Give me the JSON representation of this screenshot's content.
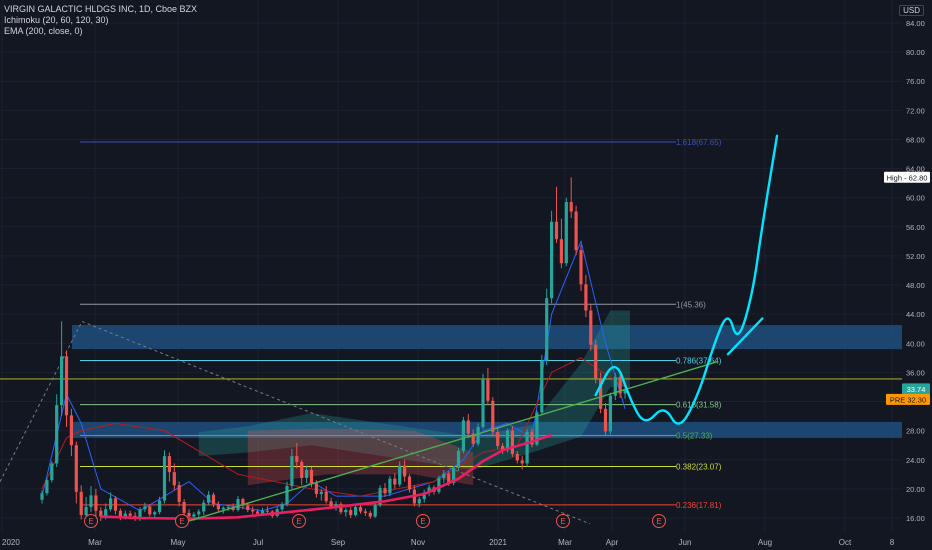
{
  "legend": {
    "symbol": "VIRGIN GALACTIC HLDGS INC, 1D, Cboe BZX",
    "ichimoku": "Ichimoku (20, 60, 120, 30)",
    "ema": "EMA (200, close, 0)"
  },
  "currency": "USD",
  "colors": {
    "background": "#131722",
    "up": "#26a69a",
    "down": "#ef5350",
    "ema": "#e91e63",
    "drawing": "#00e5ff",
    "zone": "#1e4f7e",
    "trendline": "#4caf50"
  },
  "chart_data": {
    "type": "candlestick",
    "ylim": [
      15,
      87
    ],
    "y_ticks": [
      16,
      20,
      24,
      28,
      32,
      36,
      40,
      44,
      48,
      52,
      56,
      60,
      64,
      68,
      72,
      76,
      80,
      84
    ],
    "y_tick_labels": [
      "16.00",
      "20.00",
      "24.00",
      "28.00",
      "32.00",
      "36.00",
      "40.00",
      "44.00",
      "48.00",
      "52.00",
      "56.00",
      "60.00",
      "64.00",
      "68.00",
      "72.00",
      "76.00",
      "80.00",
      "84.00"
    ],
    "x_ticks": [
      "2020",
      "Mar",
      "May",
      "Jul",
      "Sep",
      "Nov",
      "2021",
      "Mar",
      "Apr",
      "Jun",
      "Aug",
      "Oct",
      "8"
    ],
    "fib_levels": [
      {
        "label": "1.618(67.65)",
        "value": 67.65,
        "color": "#3f51b5"
      },
      {
        "label": "1(45.36)",
        "value": 45.36,
        "color": "#9598a1"
      },
      {
        "label": "0.786(37.64)",
        "value": 37.64,
        "color": "#4dd0e1"
      },
      {
        "label": "0.618(31.58)",
        "value": 31.58,
        "color": "#81c784"
      },
      {
        "label": "0.5(27.33)",
        "value": 27.33,
        "color": "#4caf50"
      },
      {
        "label": "0.382(23.07)",
        "value": 23.07,
        "color": "#cddc39"
      },
      {
        "label": "0.236(17.81)",
        "value": 17.81,
        "color": "#f44336"
      }
    ],
    "zones": [
      {
        "top": 42.5,
        "bottom": 39.2
      },
      {
        "top": 29.2,
        "bottom": 27.0
      }
    ],
    "price_labels": [
      {
        "label": "High - 62.80",
        "value": 62.8,
        "color": "#ffffff",
        "text_color": "#131722"
      },
      {
        "label": "33.74",
        "value": 33.74,
        "color": "#26a69a",
        "text_color": "#ffffff"
      },
      {
        "label": "PRE 32.30",
        "value": 32.3,
        "color": "#ff9800",
        "text_color": "#131722"
      }
    ],
    "earnings_markers": [
      "E",
      "E",
      "E",
      "E",
      "E",
      "E"
    ],
    "trendline": {
      "from": [
        30,
        15.6
      ],
      "to": [
        138,
        37.5
      ]
    },
    "ema_series": [
      [
        12,
        16.2
      ],
      [
        20,
        16.0
      ],
      [
        30,
        15.9
      ],
      [
        40,
        16.1
      ],
      [
        50,
        16.8
      ],
      [
        60,
        17.5
      ],
      [
        70,
        18.3
      ],
      [
        78,
        19.3
      ],
      [
        85,
        21.4
      ],
      [
        90,
        23.8
      ],
      [
        94,
        25.3
      ],
      [
        100,
        26.5
      ],
      [
        104,
        27.4
      ]
    ],
    "ohlc": [
      [
        0,
        18.5,
        19.8,
        18.0,
        19.4
      ],
      [
        1,
        19.4,
        21.5,
        19.1,
        21.2
      ],
      [
        2,
        21.2,
        23.8,
        20.9,
        23.5
      ],
      [
        3,
        23.5,
        33.0,
        23.0,
        31.5
      ],
      [
        4,
        31.5,
        43.0,
        30.0,
        38.2
      ],
      [
        5,
        38.2,
        39.0,
        28.5,
        30.1
      ],
      [
        6,
        30.1,
        31.0,
        24.5,
        26.0
      ],
      [
        7,
        26.0,
        26.5,
        18.0,
        19.6
      ],
      [
        8,
        19.6,
        20.5,
        15.8,
        16.4
      ],
      [
        9,
        16.4,
        18.9,
        15.6,
        17.5
      ],
      [
        10,
        17.5,
        20.4,
        16.8,
        19.1
      ],
      [
        11,
        19.1,
        20.0,
        16.2,
        17.0
      ],
      [
        12,
        17.0,
        17.5,
        15.6,
        16.2
      ],
      [
        13,
        16.2,
        18.0,
        15.8,
        17.2
      ],
      [
        14,
        17.2,
        19.5,
        16.9,
        18.7
      ],
      [
        15,
        18.7,
        19.0,
        16.5,
        17.0
      ],
      [
        16,
        17.0,
        17.3,
        15.7,
        16.2
      ],
      [
        17,
        16.2,
        17.0,
        15.8,
        16.6
      ],
      [
        18,
        16.6,
        17.0,
        15.9,
        16.3
      ],
      [
        19,
        16.3,
        16.8,
        15.6,
        15.9
      ],
      [
        20,
        15.9,
        17.5,
        15.6,
        17.2
      ],
      [
        21,
        17.2,
        18.1,
        16.8,
        17.6
      ],
      [
        22,
        17.6,
        17.9,
        16.2,
        16.5
      ],
      [
        23,
        16.5,
        17.0,
        15.9,
        16.8
      ],
      [
        24,
        16.8,
        18.9,
        16.5,
        18.4
      ],
      [
        25,
        18.4,
        25.3,
        18.0,
        24.5
      ],
      [
        26,
        24.5,
        25.0,
        21.0,
        22.3
      ],
      [
        27,
        22.3,
        23.5,
        19.8,
        20.5
      ],
      [
        28,
        20.5,
        21.0,
        17.6,
        18.2
      ],
      [
        29,
        18.2,
        18.6,
        16.0,
        16.7
      ],
      [
        30,
        16.7,
        17.2,
        15.8,
        16.2
      ],
      [
        31,
        16.2,
        16.8,
        15.6,
        16.5
      ],
      [
        32,
        16.5,
        17.2,
        15.9,
        16.9
      ],
      [
        33,
        16.9,
        18.5,
        16.4,
        18.1
      ],
      [
        34,
        18.1,
        19.7,
        17.8,
        19.2
      ],
      [
        35,
        19.2,
        19.5,
        17.5,
        17.9
      ],
      [
        36,
        17.9,
        18.3,
        16.8,
        17.2
      ],
      [
        37,
        17.2,
        17.6,
        16.6,
        17.4
      ],
      [
        38,
        17.4,
        17.8,
        17.0,
        17.5
      ],
      [
        39,
        17.5,
        18.0,
        16.9,
        17.1
      ],
      [
        40,
        17.1,
        19.0,
        16.9,
        18.6
      ],
      [
        41,
        18.6,
        18.8,
        17.2,
        17.7
      ],
      [
        42,
        17.7,
        18.0,
        16.8,
        17.1
      ],
      [
        43,
        17.1,
        17.6,
        16.5,
        16.9
      ],
      [
        44,
        16.9,
        17.2,
        16.4,
        16.6
      ],
      [
        45,
        16.6,
        17.4,
        16.3,
        17.0
      ],
      [
        46,
        17.0,
        17.6,
        16.5,
        16.9
      ],
      [
        47,
        16.9,
        17.1,
        16.0,
        16.3
      ],
      [
        48,
        16.3,
        17.5,
        16.1,
        17.2
      ],
      [
        49,
        17.2,
        18.2,
        16.9,
        17.9
      ],
      [
        50,
        17.9,
        21.0,
        17.6,
        20.4
      ],
      [
        51,
        20.4,
        25.5,
        20.0,
        24.5
      ],
      [
        52,
        24.5,
        26.3,
        22.8,
        23.7
      ],
      [
        53,
        23.7,
        24.0,
        20.5,
        21.5
      ],
      [
        54,
        21.5,
        23.2,
        20.8,
        22.6
      ],
      [
        55,
        22.6,
        23.0,
        20.2,
        20.8
      ],
      [
        56,
        20.8,
        21.2,
        18.8,
        19.3
      ],
      [
        57,
        19.3,
        20.0,
        18.4,
        19.6
      ],
      [
        58,
        19.6,
        20.4,
        18.0,
        18.3
      ],
      [
        59,
        18.3,
        18.8,
        17.2,
        17.6
      ],
      [
        60,
        17.6,
        18.3,
        17.0,
        17.9
      ],
      [
        61,
        17.9,
        18.2,
        16.5,
        16.8
      ],
      [
        62,
        16.8,
        17.4,
        16.2,
        17.1
      ],
      [
        63,
        17.1,
        17.5,
        16.0,
        16.4
      ],
      [
        64,
        16.4,
        17.8,
        16.2,
        17.5
      ],
      [
        65,
        17.5,
        18.0,
        16.6,
        16.9
      ],
      [
        66,
        16.9,
        17.3,
        16.3,
        16.7
      ],
      [
        67,
        16.7,
        17.0,
        15.9,
        16.2
      ],
      [
        68,
        16.2,
        18.0,
        16.0,
        17.8
      ],
      [
        69,
        17.8,
        20.5,
        17.5,
        20.1
      ],
      [
        70,
        20.1,
        20.8,
        18.9,
        19.4
      ],
      [
        71,
        19.4,
        21.8,
        19.0,
        21.4
      ],
      [
        72,
        21.4,
        22.2,
        20.0,
        20.6
      ],
      [
        73,
        20.6,
        23.8,
        20.3,
        23.2
      ],
      [
        74,
        23.2,
        24.0,
        21.0,
        21.7
      ],
      [
        75,
        21.7,
        22.0,
        19.5,
        19.9
      ],
      [
        76,
        19.9,
        20.5,
        17.6,
        18.0
      ],
      [
        77,
        18.0,
        18.9,
        17.5,
        18.6
      ],
      [
        78,
        18.6,
        19.9,
        18.1,
        19.5
      ],
      [
        79,
        19.5,
        20.6,
        19.0,
        20.2
      ],
      [
        80,
        20.2,
        20.5,
        19.2,
        19.6
      ],
      [
        81,
        19.6,
        21.8,
        19.3,
        21.5
      ],
      [
        82,
        21.5,
        22.6,
        20.8,
        22.1
      ],
      [
        83,
        22.1,
        22.4,
        20.4,
        20.8
      ],
      [
        84,
        20.8,
        23.1,
        20.5,
        22.9
      ],
      [
        85,
        22.9,
        25.6,
        22.5,
        25.2
      ],
      [
        86,
        25.2,
        29.9,
        24.9,
        29.4
      ],
      [
        87,
        29.4,
        30.3,
        27.0,
        27.6
      ],
      [
        88,
        27.6,
        28.2,
        25.8,
        26.2
      ],
      [
        89,
        26.2,
        29.0,
        25.9,
        28.5
      ],
      [
        90,
        28.5,
        35.8,
        28.2,
        35.1
      ],
      [
        91,
        35.1,
        36.6,
        31.5,
        32.1
      ],
      [
        92,
        32.1,
        32.6,
        27.3,
        27.8
      ],
      [
        93,
        27.8,
        28.5,
        25.5,
        25.9
      ],
      [
        94,
        25.9,
        26.3,
        24.8,
        25.3
      ],
      [
        95,
        25.3,
        28.3,
        25.0,
        28.0
      ],
      [
        96,
        28.0,
        28.6,
        24.4,
        24.8
      ],
      [
        97,
        24.8,
        25.2,
        23.5,
        23.9
      ],
      [
        98,
        23.9,
        24.5,
        22.7,
        23.5
      ],
      [
        99,
        23.5,
        28.2,
        23.1,
        27.8
      ],
      [
        100,
        27.8,
        28.3,
        25.7,
        26.1
      ],
      [
        101,
        26.1,
        30.8,
        25.9,
        30.5
      ],
      [
        102,
        30.5,
        38.4,
        30.1,
        37.6
      ],
      [
        103,
        37.6,
        47.5,
        37.0,
        46.2
      ],
      [
        104,
        46.2,
        58.2,
        45.5,
        56.7
      ],
      [
        105,
        56.7,
        61.5,
        53.8,
        54.3
      ],
      [
        106,
        54.3,
        57.1,
        50.3,
        51.0
      ],
      [
        107,
        51.0,
        60.0,
        50.6,
        59.4
      ],
      [
        108,
        59.4,
        62.8,
        57.2,
        58.1
      ],
      [
        109,
        58.1,
        58.9,
        52.1,
        52.8
      ],
      [
        110,
        52.8,
        53.5,
        47.2,
        48.1
      ],
      [
        111,
        48.1,
        49.4,
        43.6,
        44.5
      ],
      [
        112,
        44.5,
        45.3,
        39.0,
        39.8
      ],
      [
        113,
        39.8,
        40.5,
        34.5,
        35.2
      ],
      [
        114,
        35.2,
        36.0,
        30.4,
        31.0
      ],
      [
        115,
        31.0,
        31.8,
        27.3,
        27.9
      ],
      [
        116,
        27.9,
        33.2,
        27.5,
        32.8
      ],
      [
        117,
        32.8,
        35.9,
        32.2,
        35.4
      ],
      [
        118,
        35.4,
        36.2,
        32.5,
        33.1
      ],
      [
        119,
        33.1,
        34.3,
        32.4,
        33.7
      ]
    ],
    "ichimoku": {
      "tenkan": [
        [
          0,
          19
        ],
        [
          5,
          33
        ],
        [
          8,
          29
        ],
        [
          12,
          20
        ],
        [
          20,
          17
        ],
        [
          25,
          19
        ],
        [
          30,
          21
        ],
        [
          35,
          18
        ],
        [
          45,
          17
        ],
        [
          50,
          18
        ],
        [
          55,
          21
        ],
        [
          60,
          19
        ],
        [
          70,
          19
        ],
        [
          80,
          21
        ],
        [
          86,
          24
        ],
        [
          90,
          28
        ],
        [
          95,
          29
        ],
        [
          100,
          27
        ],
        [
          104,
          44
        ],
        [
          110,
          54
        ],
        [
          115,
          40
        ],
        [
          119,
          31
        ]
      ],
      "kijun": [
        [
          0,
          20
        ],
        [
          5,
          27
        ],
        [
          8,
          28
        ],
        [
          15,
          29
        ],
        [
          25,
          28
        ],
        [
          40,
          22
        ],
        [
          55,
          20
        ],
        [
          65,
          19
        ],
        [
          80,
          21
        ],
        [
          90,
          25
        ],
        [
          97,
          26
        ],
        [
          104,
          36
        ],
        [
          110,
          38
        ],
        [
          119,
          34
        ]
      ],
      "cloud_green": [
        [
          32,
          24.5,
          27.8
        ],
        [
          42,
          25,
          28.6
        ],
        [
          55,
          26,
          30.4
        ],
        [
          88,
          22.6,
          27.2
        ],
        [
          100,
          25,
          28.8
        ],
        [
          110,
          27.2,
          37.2
        ],
        [
          116,
          34,
          44.5
        ],
        [
          120,
          34,
          44.5
        ]
      ],
      "cloud_red": [
        [
          42,
          20.5,
          28
        ],
        [
          58,
          22,
          28.3
        ],
        [
          76,
          22,
          28
        ],
        [
          88,
          20.5,
          25
        ]
      ]
    },
    "projection_path": [
      [
        113,
        32.9
      ],
      [
        117,
        38.1
      ],
      [
        120,
        32.3
      ],
      [
        123,
        28.6
      ],
      [
        127,
        31.6
      ],
      [
        130,
        27.9
      ],
      [
        134,
        33.0
      ],
      [
        137,
        39.6
      ],
      [
        140,
        44.6
      ],
      [
        142,
        39.9
      ],
      [
        145,
        46.7
      ],
      [
        147,
        56.2
      ],
      [
        150,
        68.5
      ]
    ],
    "projection_line": [
      [
        140,
        38.5
      ],
      [
        147,
        43.4
      ]
    ]
  }
}
